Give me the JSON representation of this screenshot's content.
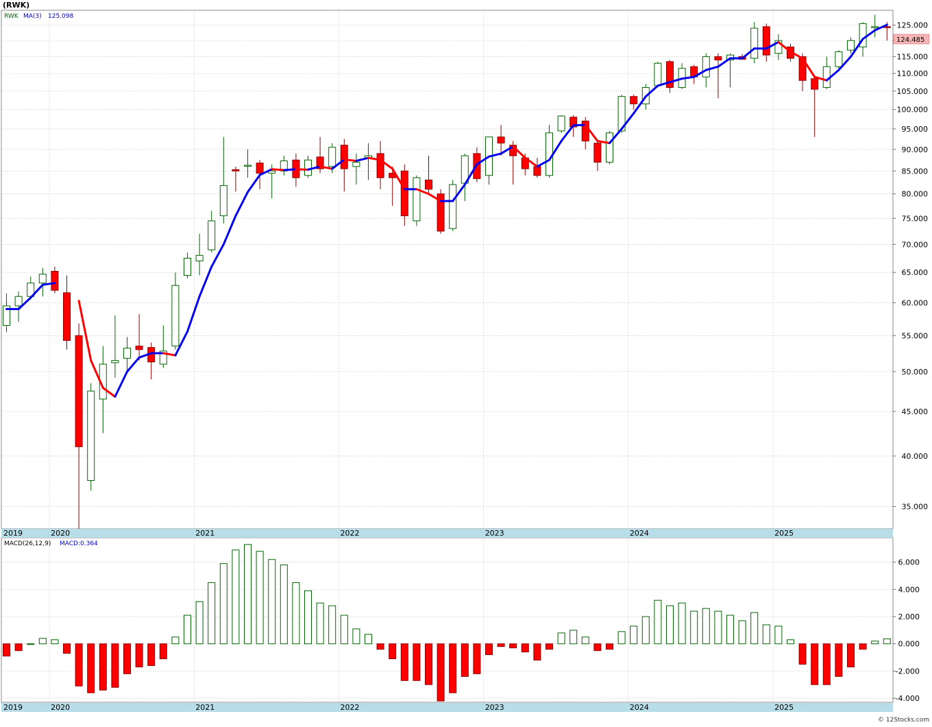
{
  "header": {
    "ticker": "(RWK)",
    "legend_symbol": "RWK",
    "legend_ma": "MA(3)",
    "legend_ma_value": "125.098",
    "last_price": "124.485",
    "macd_label": "MACD(26,12,9)",
    "macd_value": "MACD:0.364",
    "copyright": "© 12Stocks.com"
  },
  "colors": {
    "up": "#006400",
    "down": "#ff0000",
    "ma_up": "#0000ee",
    "ma_down": "#ff0000",
    "axis_band": "#b7dde8",
    "price_box": "#f6b6b6"
  },
  "chart_data": [
    {
      "type": "candlestick",
      "title": "(RWK)",
      "y_scale": "log",
      "ylim": [
        33,
        130
      ],
      "y_ticks": [
        "35.000",
        "40.000",
        "45.000",
        "50.000",
        "55.000",
        "60.000",
        "65.000",
        "70.000",
        "75.000",
        "80.000",
        "85.000",
        "90.000",
        "95.000",
        "100.000",
        "105.000",
        "110.000",
        "115.000",
        "120.000",
        "125.000"
      ],
      "x_labels": [
        "2019",
        "2020",
        "2021",
        "2022",
        "2023",
        "2024",
        "2025"
      ],
      "candles": [
        {
          "date": "2019-11",
          "o": 56.5,
          "h": 61.5,
          "l": 55.5,
          "c": 59.5
        },
        {
          "date": "2019-12",
          "o": 59.5,
          "h": 61.8,
          "l": 57.0,
          "c": 61.0
        },
        {
          "date": "2020-01",
          "o": 61.0,
          "h": 64.3,
          "l": 60.5,
          "c": 63.2
        },
        {
          "date": "2020-02",
          "o": 63.2,
          "h": 65.8,
          "l": 61.0,
          "c": 64.7
        },
        {
          "date": "2020-03",
          "o": 65.2,
          "h": 66.0,
          "l": 61.5,
          "c": 62.0
        },
        {
          "date": "2020-04",
          "o": 61.6,
          "h": 64.5,
          "l": 53.0,
          "c": 54.3
        },
        {
          "date": "2020-05",
          "o": 55.0,
          "h": 56.8,
          "l": 33.0,
          "c": 41.0
        },
        {
          "date": "2020-06",
          "o": 37.5,
          "h": 48.5,
          "l": 36.5,
          "c": 47.5
        },
        {
          "date": "2020-07",
          "o": 46.5,
          "h": 53.5,
          "l": 42.5,
          "c": 51.0
        },
        {
          "date": "2020-08",
          "o": 51.2,
          "h": 58.0,
          "l": 49.2,
          "c": 51.5
        },
        {
          "date": "2020-09",
          "o": 51.8,
          "h": 54.8,
          "l": 50.0,
          "c": 53.2
        },
        {
          "date": "2020-10",
          "o": 53.5,
          "h": 58.2,
          "l": 51.5,
          "c": 53.0
        },
        {
          "date": "2020-11",
          "o": 53.3,
          "h": 54.0,
          "l": 49.0,
          "c": 51.3
        },
        {
          "date": "2020-12",
          "o": 51.0,
          "h": 56.5,
          "l": 50.5,
          "c": 52.8
        },
        {
          "date": "2021-01",
          "o": 53.5,
          "h": 65.0,
          "l": 53.0,
          "c": 62.8
        },
        {
          "date": "2021-02",
          "o": 64.5,
          "h": 68.5,
          "l": 64.0,
          "c": 67.5
        },
        {
          "date": "2021-03",
          "o": 67.0,
          "h": 72.0,
          "l": 64.5,
          "c": 68.0
        },
        {
          "date": "2021-04",
          "o": 69.0,
          "h": 76.5,
          "l": 68.5,
          "c": 74.5
        },
        {
          "date": "2021-05",
          "o": 75.5,
          "h": 93.0,
          "l": 74.0,
          "c": 81.8
        },
        {
          "date": "2021-06",
          "o": 85.3,
          "h": 86.0,
          "l": 80.5,
          "c": 85.0
        },
        {
          "date": "2021-07",
          "o": 86.3,
          "h": 90.0,
          "l": 83.5,
          "c": 86.3
        },
        {
          "date": "2021-08",
          "o": 86.8,
          "h": 87.5,
          "l": 81.0,
          "c": 84.5
        },
        {
          "date": "2021-09",
          "o": 84.5,
          "h": 86.5,
          "l": 79.0,
          "c": 85.0
        },
        {
          "date": "2021-10",
          "o": 85.0,
          "h": 88.5,
          "l": 84.0,
          "c": 87.3
        },
        {
          "date": "2021-11",
          "o": 87.5,
          "h": 89.0,
          "l": 81.5,
          "c": 83.5
        },
        {
          "date": "2021-12",
          "o": 84.0,
          "h": 88.5,
          "l": 83.5,
          "c": 87.5
        },
        {
          "date": "2022-01",
          "o": 88.2,
          "h": 93.0,
          "l": 84.5,
          "c": 85.5
        },
        {
          "date": "2022-02",
          "o": 86.0,
          "h": 91.5,
          "l": 84.5,
          "c": 90.5
        },
        {
          "date": "2022-03",
          "o": 91.0,
          "h": 92.5,
          "l": 80.5,
          "c": 85.5
        },
        {
          "date": "2022-04",
          "o": 86.0,
          "h": 89.0,
          "l": 82.0,
          "c": 87.0
        },
        {
          "date": "2022-05",
          "o": 88.0,
          "h": 91.5,
          "l": 83.0,
          "c": 88.5
        },
        {
          "date": "2022-06",
          "o": 89.0,
          "h": 92.0,
          "l": 81.0,
          "c": 83.5
        },
        {
          "date": "2022-07",
          "o": 84.5,
          "h": 86.0,
          "l": 77.5,
          "c": 83.5
        },
        {
          "date": "2022-08",
          "o": 85.0,
          "h": 86.5,
          "l": 73.5,
          "c": 75.5
        },
        {
          "date": "2022-09",
          "o": 74.5,
          "h": 84.0,
          "l": 73.5,
          "c": 83.5
        },
        {
          "date": "2022-10",
          "o": 83.0,
          "h": 88.5,
          "l": 80.0,
          "c": 81.0
        },
        {
          "date": "2022-11",
          "o": 80.0,
          "h": 81.0,
          "l": 72.0,
          "c": 72.5
        },
        {
          "date": "2022-12",
          "o": 73.0,
          "h": 83.0,
          "l": 72.5,
          "c": 82.0
        },
        {
          "date": "2023-01",
          "o": 82.3,
          "h": 89.0,
          "l": 78.5,
          "c": 88.5
        },
        {
          "date": "2023-02",
          "o": 89.0,
          "h": 90.5,
          "l": 82.5,
          "c": 83.3
        },
        {
          "date": "2023-03",
          "o": 84.0,
          "h": 93.0,
          "l": 82.0,
          "c": 93.0
        },
        {
          "date": "2023-04",
          "o": 93.0,
          "h": 96.0,
          "l": 88.5,
          "c": 91.5
        },
        {
          "date": "2023-05",
          "o": 91.0,
          "h": 92.0,
          "l": 82.0,
          "c": 88.5
        },
        {
          "date": "2023-06",
          "o": 88.0,
          "h": 89.0,
          "l": 84.0,
          "c": 85.5
        },
        {
          "date": "2023-07",
          "o": 86.0,
          "h": 88.0,
          "l": 83.5,
          "c": 84.0
        },
        {
          "date": "2023-08",
          "o": 84.0,
          "h": 96.0,
          "l": 83.5,
          "c": 94.0
        },
        {
          "date": "2023-09",
          "o": 94.5,
          "h": 98.5,
          "l": 94.0,
          "c": 98.3
        },
        {
          "date": "2023-10",
          "o": 98.0,
          "h": 98.5,
          "l": 93.0,
          "c": 95.5
        },
        {
          "date": "2023-11",
          "o": 97.0,
          "h": 98.0,
          "l": 90.0,
          "c": 92.0
        },
        {
          "date": "2023-12",
          "o": 91.5,
          "h": 92.0,
          "l": 85.0,
          "c": 87.0
        },
        {
          "date": "2024-01",
          "o": 87.0,
          "h": 94.5,
          "l": 86.5,
          "c": 94.0
        },
        {
          "date": "2024-02",
          "o": 94.5,
          "h": 104.0,
          "l": 94.0,
          "c": 103.5
        },
        {
          "date": "2024-03",
          "o": 103.5,
          "h": 104.0,
          "l": 100.0,
          "c": 101.5
        },
        {
          "date": "2024-04",
          "o": 101.5,
          "h": 107.0,
          "l": 100.0,
          "c": 106.0
        },
        {
          "date": "2024-05",
          "o": 106.5,
          "h": 113.5,
          "l": 106.0,
          "c": 113.0
        },
        {
          "date": "2024-06",
          "o": 113.5,
          "h": 114.0,
          "l": 104.5,
          "c": 106.0
        },
        {
          "date": "2024-07",
          "o": 106.0,
          "h": 113.0,
          "l": 105.5,
          "c": 111.5
        },
        {
          "date": "2024-08",
          "o": 112.0,
          "h": 112.5,
          "l": 107.0,
          "c": 109.0
        },
        {
          "date": "2024-09",
          "o": 109.0,
          "h": 116.0,
          "l": 106.0,
          "c": 115.0
        },
        {
          "date": "2024-10",
          "o": 115.0,
          "h": 116.0,
          "l": 103.0,
          "c": 114.0
        },
        {
          "date": "2024-11",
          "o": 114.0,
          "h": 116.0,
          "l": 106.0,
          "c": 115.5
        },
        {
          "date": "2024-12",
          "o": 115.0,
          "h": 115.8,
          "l": 114.2,
          "c": 114.2
        },
        {
          "date": "2025-01",
          "o": 114.5,
          "h": 126.0,
          "l": 113.0,
          "c": 124.0
        },
        {
          "date": "2025-02",
          "o": 124.5,
          "h": 125.5,
          "l": 113.5,
          "c": 115.5
        },
        {
          "date": "2025-03",
          "o": 116.0,
          "h": 122.0,
          "l": 114.0,
          "c": 120.0
        },
        {
          "date": "2025-04",
          "o": 118.0,
          "h": 119.0,
          "l": 113.5,
          "c": 114.5
        },
        {
          "date": "2025-05",
          "o": 115.0,
          "h": 116.0,
          "l": 105.0,
          "c": 108.0
        },
        {
          "date": "2025-06",
          "o": 108.5,
          "h": 109.0,
          "l": 93.0,
          "c": 105.5
        },
        {
          "date": "2025-07",
          "o": 106.0,
          "h": 115.0,
          "l": 105.5,
          "c": 112.0
        },
        {
          "date": "2025-08",
          "o": 112.0,
          "h": 117.0,
          "l": 111.5,
          "c": 116.5
        },
        {
          "date": "2025-09",
          "o": 117.0,
          "h": 121.0,
          "l": 116.0,
          "c": 120.0
        },
        {
          "date": "2025-10",
          "o": 118.0,
          "h": 126.0,
          "l": 115.0,
          "c": 125.5
        },
        {
          "date": "2025-11",
          "o": 124.5,
          "h": 128.5,
          "l": 121.0,
          "c": 124.5
        },
        {
          "date": "2025-12",
          "o": 124.5,
          "h": 126.0,
          "l": 120.0,
          "c": 124.485
        }
      ],
      "ma3": [
        59.0,
        59.0,
        60.8,
        62.9,
        63.2,
        null,
        60.3,
        51.5,
        47.9,
        46.8,
        50.0,
        51.9,
        52.5,
        52.5,
        52.2,
        55.6,
        61.0,
        66.0,
        70.0,
        75.5,
        80.4,
        84.1,
        85.4,
        85.2,
        85.4,
        85.3,
        86.0,
        85.5,
        87.6,
        87.3,
        88.0,
        87.5,
        85.5,
        81.0,
        81.0,
        80.0,
        78.5,
        78.5,
        82.0,
        86.5,
        88.3,
        89.0,
        90.7,
        88.0,
        86.0,
        87.5,
        92.0,
        95.9,
        96.0,
        92.0,
        91.5,
        95.0,
        99.0,
        103.5,
        106.5,
        107.5,
        108.5,
        109.0,
        111.0,
        112.0,
        114.5,
        114.5,
        117.5,
        117.5,
        119.5,
        116.5,
        114.5,
        109.0,
        108.0,
        111.0,
        115.0,
        120.5,
        123.3,
        125.098
      ]
    },
    {
      "type": "bar",
      "title": "MACD(26,12,9)",
      "ylim": [
        -4.3,
        7.8
      ],
      "y_ticks": [
        "-4.000",
        "-2.000",
        "0.000",
        "2.000",
        "4.000",
        "6.000"
      ],
      "values": [
        -0.9,
        -0.5,
        0.0,
        0.4,
        0.3,
        -0.7,
        -3.1,
        -3.6,
        -3.4,
        -3.2,
        -2.2,
        -1.7,
        -1.6,
        -1.1,
        0.5,
        2.1,
        3.1,
        4.5,
        5.9,
        6.9,
        7.3,
        6.8,
        6.2,
        5.8,
        4.5,
        3.9,
        3.0,
        2.8,
        2.1,
        1.1,
        0.7,
        -0.4,
        -1.1,
        -2.7,
        -2.7,
        -3.0,
        -4.2,
        -3.6,
        -2.4,
        -2.2,
        -0.8,
        -0.2,
        -0.3,
        -0.6,
        -1.2,
        -0.4,
        0.8,
        1.0,
        0.5,
        -0.5,
        -0.4,
        0.9,
        1.3,
        2.0,
        3.2,
        2.8,
        3.0,
        2.4,
        2.6,
        2.4,
        2.1,
        1.7,
        2.3,
        1.4,
        1.3,
        0.3,
        -1.5,
        -3.0,
        -3.0,
        -2.4,
        -1.7,
        -0.4,
        0.2,
        0.364
      ]
    }
  ]
}
